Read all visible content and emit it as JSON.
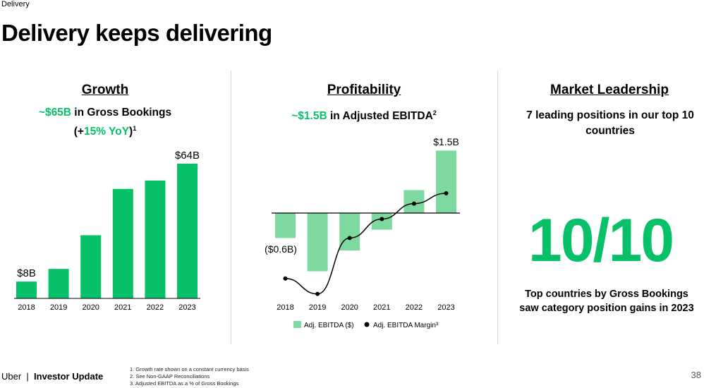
{
  "section": "Delivery",
  "title": "Delivery keeps delivering",
  "growth": {
    "heading": "Growth",
    "line1_value": "~$65B",
    "line1_text": " in Gross Bookings",
    "line2_open": "(+",
    "line2_value": "15% YoY",
    "line2_close": ")",
    "line2_sup": "1"
  },
  "profitability": {
    "heading": "Profitability",
    "value": "~$1.5B",
    "text": " in Adjusted EBITDA",
    "sup": "2"
  },
  "leadership": {
    "heading": "Market Leadership",
    "subtitle": "7 leading positions in our top 10 countries",
    "big_number": "10/10",
    "caption": "Top countries by Gross Bookings saw category position gains in 2023"
  },
  "footer": {
    "brand": "Uber",
    "separator": "|",
    "label": "Investor Update",
    "notes": [
      "1. Growth rate shown on a constant currency basis",
      "2. See Non-GAAP Reconciliations",
      "3. Adjusted EBITDA as a % of Gross Bookings"
    ],
    "page": "38"
  },
  "colors": {
    "green": "#06c167",
    "light_green": "#7ed9a0",
    "line": "#000000"
  },
  "chart_data": [
    {
      "type": "bar",
      "categories": [
        "2018",
        "2019",
        "2020",
        "2021",
        "2022",
        "2023"
      ],
      "values": [
        8,
        14,
        30,
        52,
        56,
        64
      ],
      "data_labels": {
        "0": "$8B",
        "5": "$64B"
      },
      "unit": "$B",
      "grid": false
    },
    {
      "type": "bar+line",
      "categories": [
        "2018",
        "2019",
        "2020",
        "2021",
        "2022",
        "2023"
      ],
      "series": [
        {
          "name": "Adj. EBITDA ($)",
          "type": "bar",
          "unit": "$B",
          "values": [
            -0.6,
            -1.4,
            -0.9,
            -0.4,
            0.55,
            1.5
          ]
        },
        {
          "name": "Adj. EBITDA Margin³",
          "type": "line",
          "unit": "%",
          "values": [
            -7.6,
            -9.4,
            -2.9,
            -0.7,
            1.1,
            2.3
          ]
        }
      ],
      "data_labels": {
        "0": "($0.6B)",
        "5": "$1.5B"
      },
      "legend": "bottom",
      "grid": false
    }
  ]
}
